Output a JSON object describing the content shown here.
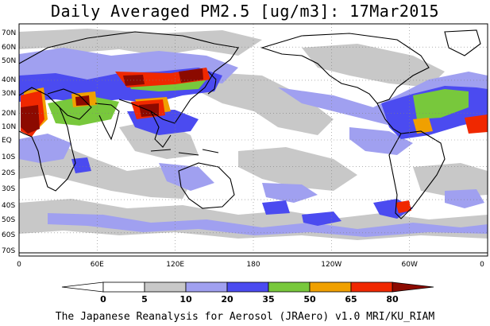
{
  "title": "Daily Averaged PM2.5 [ug/m3]: 17Mar2015",
  "credit": "The Japanese Reanalysis for Aerosol (JRAero) v1.0 MRI/KU_RIAM",
  "lat_labels": [
    "70N",
    "60N",
    "50N",
    "40N",
    "30N",
    "20N",
    "10N",
    "EQ",
    "10S",
    "20S",
    "30S",
    "40S",
    "50S",
    "60S",
    "70S"
  ],
  "lon_labels": [
    "0",
    "60E",
    "120E",
    "180",
    "120W",
    "60W",
    "0"
  ],
  "colorbar": {
    "levels": [
      "0",
      "5",
      "10",
      "20",
      "35",
      "50",
      "65",
      "80"
    ],
    "colors": [
      "#ffffff",
      "#c8c8c8",
      "#a0a0f0",
      "#4b4bf0",
      "#78c83c",
      "#f0a000",
      "#f02800",
      "#8c0a00"
    ]
  }
}
